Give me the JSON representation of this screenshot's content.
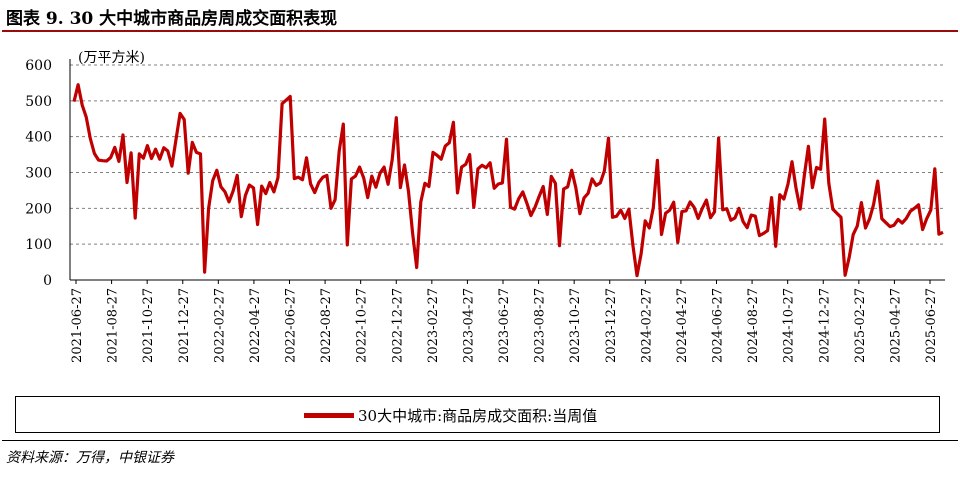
{
  "title": "图表 9. 30 大中城市商品房周成交面积表现",
  "source": "资料来源：万得，中银证券",
  "colors": {
    "series": "#c00000",
    "title_rule": "#9a0b0b"
  },
  "chart_data": {
    "type": "line",
    "ylabel": "(万平方米)",
    "ylim": [
      0,
      600
    ],
    "yticks": [
      0,
      100,
      200,
      300,
      400,
      500,
      600
    ],
    "xlabels": [
      "2021-06-27",
      "2021-08-27",
      "2021-10-27",
      "2021-12-27",
      "2022-02-27",
      "2022-04-27",
      "2022-06-27",
      "2022-08-27",
      "2022-10-27",
      "2022-12-27",
      "2023-02-27",
      "2023-04-27",
      "2023-06-27",
      "2023-08-27",
      "2023-10-27",
      "2023-12-27",
      "2024-02-27",
      "2024-04-27",
      "2024-06-27",
      "2024-08-27",
      "2024-10-27",
      "2024-12-27",
      "2025-02-27",
      "2025-04-27",
      "2025-06-27"
    ],
    "grid": true,
    "legend": "bottom",
    "series": [
      {
        "name": "30大中城市:商品房成交面积:当周值",
        "values": [
          498,
          545,
          488,
          455,
          395,
          353,
          335,
          333,
          332,
          342,
          370,
          331,
          405,
          272,
          355,
          173,
          352,
          340,
          375,
          339,
          365,
          337,
          369,
          360,
          318,
          392,
          465,
          448,
          298,
          384,
          356,
          352,
          22,
          200,
          277,
          306,
          260,
          246,
          218,
          248,
          292,
          177,
          236,
          265,
          257,
          155,
          262,
          241,
          272,
          246,
          286,
          492,
          502,
          512,
          283,
          287,
          280,
          341,
          268,
          244,
          272,
          287,
          292,
          200,
          224,
          360,
          435,
          98,
          282,
          290,
          315,
          285,
          230,
          290,
          259,
          298,
          315,
          267,
          336,
          453,
          258,
          321,
          247,
          131,
          35,
          218,
          270,
          261,
          356,
          348,
          337,
          374,
          383,
          440,
          243,
          315,
          323,
          350,
          203,
          310,
          320,
          313,
          327,
          256,
          268,
          271,
          393,
          203,
          198,
          227,
          246,
          214,
          180,
          203,
          233,
          261,
          183,
          289,
          270,
          96,
          254,
          260,
          306,
          258,
          185,
          229,
          242,
          282,
          264,
          271,
          305,
          396,
          175,
          178,
          195,
          172,
          198,
          97,
          12,
          73,
          165,
          145,
          202,
          334,
          127,
          186,
          195,
          217,
          105,
          191,
          193,
          218,
          203,
          172,
          200,
          223,
          174,
          190,
          396,
          196,
          199,
          167,
          173,
          200,
          163,
          146,
          181,
          178,
          124,
          130,
          138,
          230,
          94,
          238,
          226,
          268,
          330,
          255,
          198,
          291,
          373,
          258,
          314,
          309,
          449,
          270,
          198,
          186,
          175,
          13,
          63,
          127,
          151,
          216,
          145,
          171,
          211,
          276,
          171,
          160,
          149,
          153,
          169,
          159,
          172,
          192,
          200,
          210,
          141,
          171,
          195,
          310,
          128,
          133
        ]
      }
    ]
  },
  "legend": {
    "label": "30大中城市:商品房成交面积:当周值"
  }
}
